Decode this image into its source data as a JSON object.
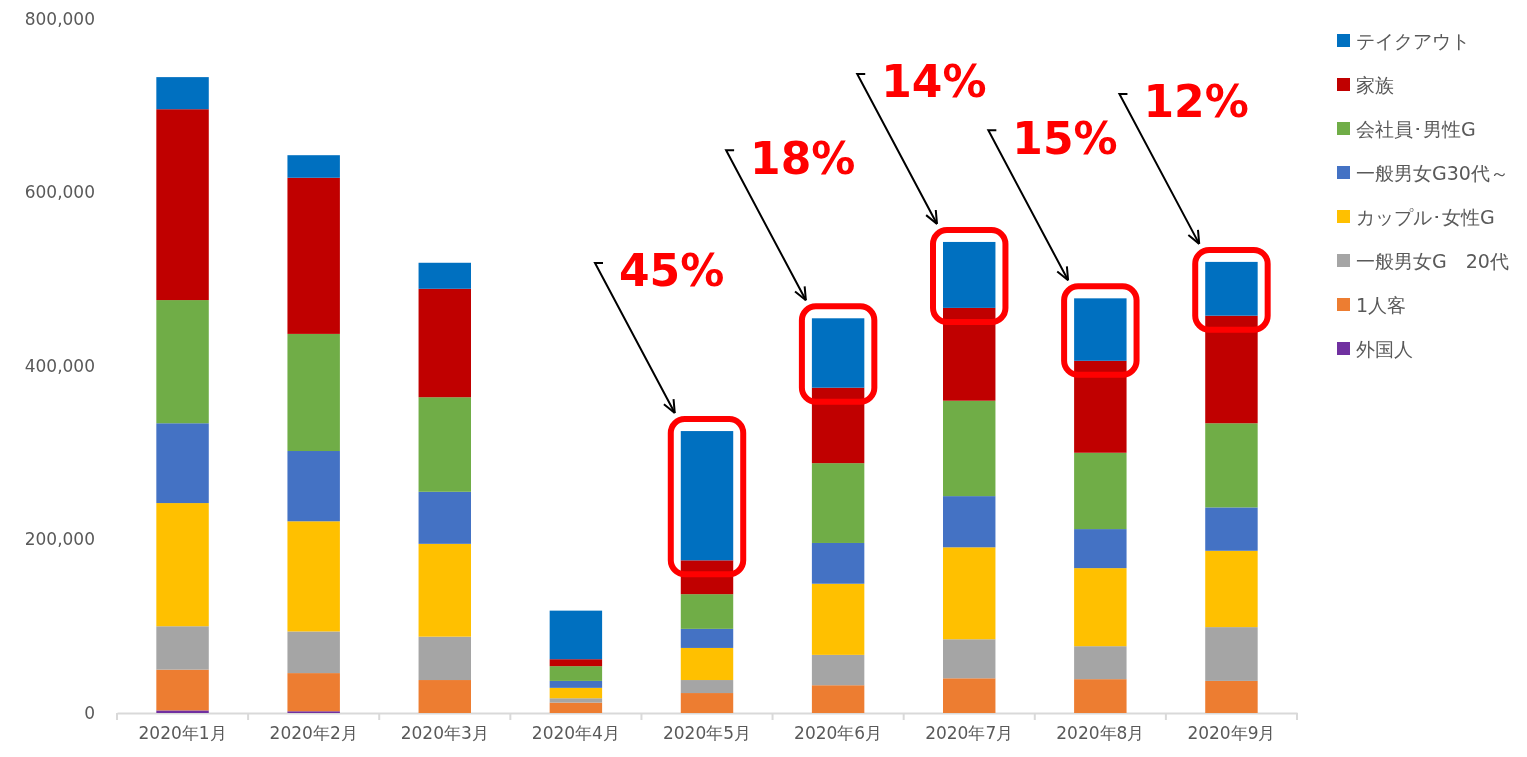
{
  "chart_data": {
    "type": "bar",
    "stacked": true,
    "categories": [
      "2020年1月",
      "2020年2月",
      "2020年3月",
      "2020年4月",
      "2020年5月",
      "2020年6月",
      "2020年7月",
      "2020年8月",
      "2020年9月"
    ],
    "series": [
      {
        "name": "外国人",
        "color": "#7030a0",
        "values": [
          3000,
          2000,
          0,
          0,
          0,
          0,
          0,
          0,
          0
        ]
      },
      {
        "name": "1人客",
        "color": "#ed7d31",
        "values": [
          47000,
          44000,
          38000,
          12000,
          23000,
          32000,
          40000,
          39000,
          37000
        ]
      },
      {
        "name": "一般男女G　20代",
        "color": "#a5a5a5",
        "values": [
          50000,
          48000,
          50000,
          5000,
          15000,
          35000,
          45000,
          38000,
          62000
        ]
      },
      {
        "name": "カップル･女性G",
        "color": "#ffc000",
        "values": [
          142000,
          127000,
          107000,
          12000,
          37000,
          82000,
          106000,
          90000,
          88000
        ]
      },
      {
        "name": "一般男女G30代～",
        "color": "#4472c4",
        "values": [
          92000,
          81000,
          60000,
          8000,
          22000,
          47000,
          59000,
          45000,
          50000
        ]
      },
      {
        "name": "会社員･男性G",
        "color": "#70ad47",
        "values": [
          142000,
          135000,
          109000,
          17000,
          40000,
          92000,
          110000,
          88000,
          97000
        ]
      },
      {
        "name": "家族",
        "color": "#c00000",
        "values": [
          220000,
          180000,
          125000,
          8000,
          39000,
          87000,
          107000,
          106000,
          124000
        ]
      },
      {
        "name": "テイクアウト",
        "color": "#0070c0",
        "values": [
          37000,
          26000,
          30000,
          56000,
          149000,
          80000,
          76000,
          72000,
          62000
        ]
      }
    ],
    "ylim": [
      0,
      800000
    ],
    "yticks": [
      {
        "value": 0,
        "label": "0"
      },
      {
        "value": 200000,
        "label": "200,000"
      },
      {
        "value": 400000,
        "label": "400,000"
      },
      {
        "value": 600000,
        "label": "600,000"
      },
      {
        "value": 800000,
        "label": "800,000"
      }
    ],
    "grid": false,
    "legend": "top right",
    "annotations": [
      "45%",
      "18%",
      "14%",
      "15%",
      "12%"
    ]
  }
}
